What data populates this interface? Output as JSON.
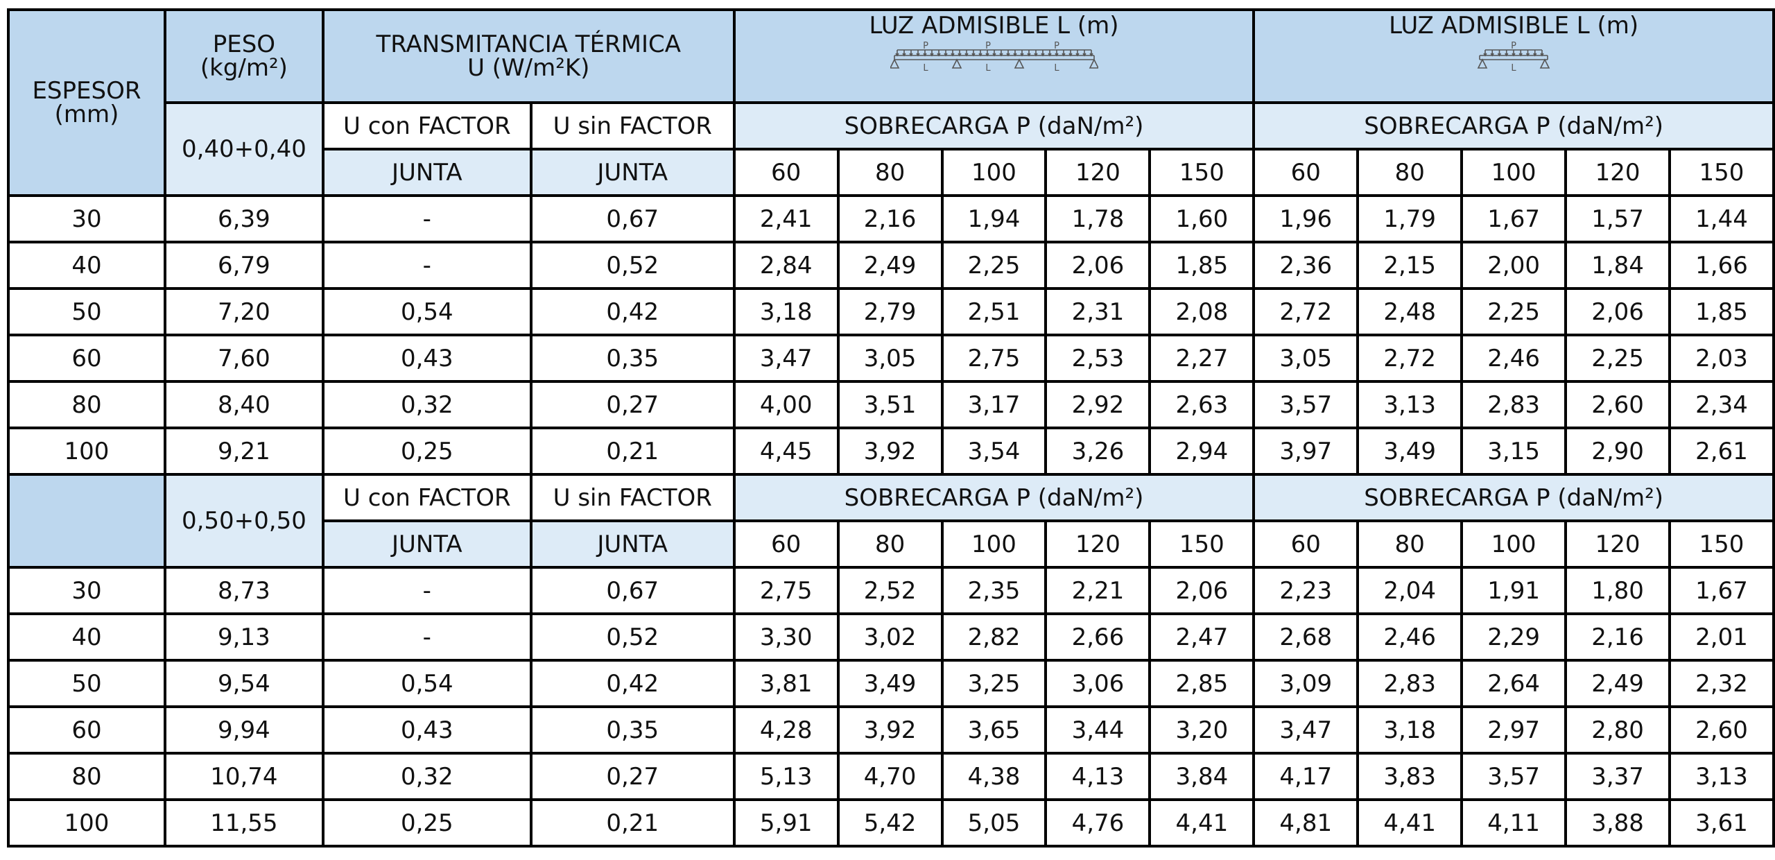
{
  "header": {
    "espesor_l1": "ESPESOR",
    "espesor_l2": "(mm)",
    "peso_l1": "PESO",
    "peso_l2": "(kg/m²)",
    "trans_l1": "TRANSMITANCIA TÉRMICA",
    "trans_l2": "U (W/m²K)",
    "luz_multi_title": "LUZ ADMISIBLE L (m)",
    "luz_single_title": "LUZ ADMISIBLE L (m)",
    "diagram_p": "P",
    "diagram_l": "L"
  },
  "colors": {
    "dark_header": "#bdd7ee",
    "light_header": "#ddebf7",
    "border": "#000000"
  },
  "sections": [
    {
      "peso_label": "0,40+0,40",
      "u_con_l1": "U con FACTOR",
      "u_con_l2": "JUNTA",
      "u_sin_l1": "U sin FACTOR",
      "u_sin_l2": "JUNTA",
      "sobrecarga_multi": "SOBRECARGA P (daN/m²)",
      "sobrecarga_single": "SOBRECARGA P (daN/m²)",
      "loads_multi": [
        "60",
        "80",
        "100",
        "120",
        "150"
      ],
      "loads_single": [
        "60",
        "80",
        "100",
        "120",
        "150"
      ],
      "rows": [
        [
          "30",
          "6,39",
          "-",
          "0,67",
          "2,41",
          "2,16",
          "1,94",
          "1,78",
          "1,60",
          "1,96",
          "1,79",
          "1,67",
          "1,57",
          "1,44"
        ],
        [
          "40",
          "6,79",
          "-",
          "0,52",
          "2,84",
          "2,49",
          "2,25",
          "2,06",
          "1,85",
          "2,36",
          "2,15",
          "2,00",
          "1,84",
          "1,66"
        ],
        [
          "50",
          "7,20",
          "0,54",
          "0,42",
          "3,18",
          "2,79",
          "2,51",
          "2,31",
          "2,08",
          "2,72",
          "2,48",
          "2,25",
          "2,06",
          "1,85"
        ],
        [
          "60",
          "7,60",
          "0,43",
          "0,35",
          "3,47",
          "3,05",
          "2,75",
          "2,53",
          "2,27",
          "3,05",
          "2,72",
          "2,46",
          "2,25",
          "2,03"
        ],
        [
          "80",
          "8,40",
          "0,32",
          "0,27",
          "4,00",
          "3,51",
          "3,17",
          "2,92",
          "2,63",
          "3,57",
          "3,13",
          "2,83",
          "2,60",
          "2,34"
        ],
        [
          "100",
          "9,21",
          "0,25",
          "0,21",
          "4,45",
          "3,92",
          "3,54",
          "3,26",
          "2,94",
          "3,97",
          "3,49",
          "3,15",
          "2,90",
          "2,61"
        ]
      ]
    },
    {
      "peso_label": "0,50+0,50",
      "u_con_l1": "U con FACTOR",
      "u_con_l2": "JUNTA",
      "u_sin_l1": "U sin FACTOR",
      "u_sin_l2": "JUNTA",
      "sobrecarga_multi": "SOBRECARGA P (daN/m²)",
      "sobrecarga_single": "SOBRECARGA P (daN/m²)",
      "loads_multi": [
        "60",
        "80",
        "100",
        "120",
        "150"
      ],
      "loads_single": [
        "60",
        "80",
        "100",
        "120",
        "150"
      ],
      "rows": [
        [
          "30",
          "8,73",
          "-",
          "0,67",
          "2,75",
          "2,52",
          "2,35",
          "2,21",
          "2,06",
          "2,23",
          "2,04",
          "1,91",
          "1,80",
          "1,67"
        ],
        [
          "40",
          "9,13",
          "-",
          "0,52",
          "3,30",
          "3,02",
          "2,82",
          "2,66",
          "2,47",
          "2,68",
          "2,46",
          "2,29",
          "2,16",
          "2,01"
        ],
        [
          "50",
          "9,54",
          "0,54",
          "0,42",
          "3,81",
          "3,49",
          "3,25",
          "3,06",
          "2,85",
          "3,09",
          "2,83",
          "2,64",
          "2,49",
          "2,32"
        ],
        [
          "60",
          "9,94",
          "0,43",
          "0,35",
          "4,28",
          "3,92",
          "3,65",
          "3,44",
          "3,20",
          "3,47",
          "3,18",
          "2,97",
          "2,80",
          "2,60"
        ],
        [
          "80",
          "10,74",
          "0,32",
          "0,27",
          "5,13",
          "4,70",
          "4,38",
          "4,13",
          "3,84",
          "4,17",
          "3,83",
          "3,57",
          "3,37",
          "3,13"
        ],
        [
          "100",
          "11,55",
          "0,25",
          "0,21",
          "5,91",
          "5,42",
          "5,05",
          "4,76",
          "4,41",
          "4,81",
          "4,41",
          "4,11",
          "3,88",
          "3,61"
        ]
      ]
    }
  ]
}
